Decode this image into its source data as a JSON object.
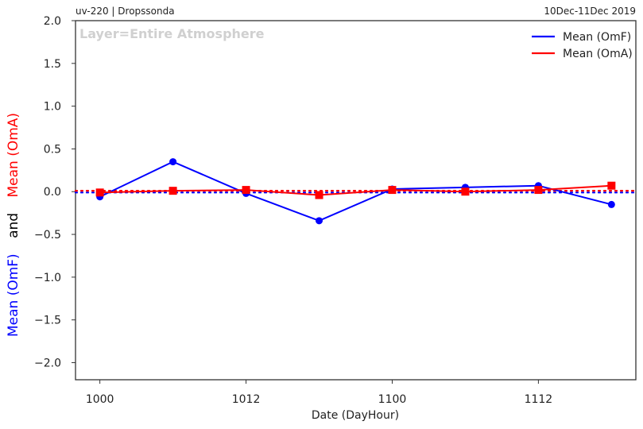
{
  "header": {
    "left": "uv-220  |  Dropssonda",
    "right": "10Dec-11Dec 2019"
  },
  "chart_data": {
    "type": "line",
    "title": "",
    "annotation": "Layer=Entire Atmosphere",
    "xlabel": "Date (DayHour)",
    "ylabel_parts": [
      {
        "text": "Mean (OmF)",
        "color": "#0000ff"
      },
      {
        "text": "and",
        "color": "#000000"
      },
      {
        "text": "Mean (OmA)",
        "color": "#ff0000"
      }
    ],
    "x": [
      0,
      6,
      12,
      18,
      24,
      30,
      36,
      42
    ],
    "xlim": [
      -2,
      44
    ],
    "xticks": [
      0,
      12,
      24,
      36
    ],
    "xtick_labels": [
      "1000",
      "1012",
      "1100",
      "1112"
    ],
    "ylim": [
      -2.2,
      2.0
    ],
    "yticks": [
      2.0,
      1.5,
      1.0,
      0.5,
      0.0,
      -0.5,
      -1.0,
      -1.5,
      -2.0
    ],
    "ytick_labels": [
      "2.0",
      "1.5",
      "1.0",
      "0.5",
      "0.0",
      "−0.5",
      "−1.0",
      "−1.5",
      "−2.0"
    ],
    "series": [
      {
        "name": "Mean (OmF)",
        "color": "#0000ff",
        "marker": "circle",
        "values": [
          -0.06,
          0.35,
          -0.02,
          -0.34,
          0.03,
          0.05,
          0.07,
          -0.15
        ],
        "overall_mean": -0.01
      },
      {
        "name": "Mean (OmA)",
        "color": "#ff0000",
        "marker": "square",
        "values": [
          -0.01,
          0.01,
          0.02,
          -0.04,
          0.02,
          0.0,
          0.02,
          0.07
        ],
        "overall_mean": 0.01
      }
    ],
    "legend": "top-right",
    "grid": false
  }
}
